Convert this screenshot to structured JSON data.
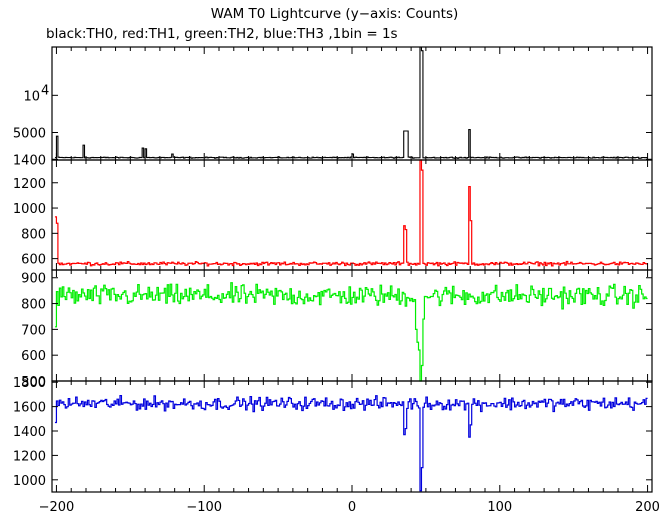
{
  "chart_data": {
    "type": "line",
    "title": "WAM T0 Lightcurve (y−axis: Counts)",
    "subtitle": "black:TH0, red:TH1, green:TH2, blue:TH3 ,1bin = 1s",
    "xlim": [
      -203,
      203
    ],
    "x_ticks": [
      -200,
      -100,
      0,
      100,
      200
    ],
    "x_tick_labels": [
      "−200",
      "−100",
      "0",
      "100",
      "200"
    ],
    "grid": false,
    "panels": [
      {
        "name": "TH0",
        "color": "#000000",
        "ylim": [
          1300,
          16500
        ],
        "y_tick_labels": [
          {
            "value": 10000,
            "label": "10",
            "exp": "4"
          },
          {
            "value": 5000,
            "label": "5000"
          },
          {
            "value": 1400,
            "label": "1400"
          }
        ],
        "baseline": 1620,
        "noise": 60,
        "features": [
          {
            "x": -200,
            "y": 4500
          },
          {
            "x": -182,
            "y": 3300
          },
          {
            "x": -142,
            "y": 2900
          },
          {
            "x": -140,
            "y": 2800
          },
          {
            "x": -122,
            "y": 2100
          },
          {
            "x": 0,
            "y": 2100
          },
          {
            "x": 35,
            "y": 5200
          },
          {
            "x": 36,
            "y": 5200
          },
          {
            "x": 37,
            "y": 5200
          },
          {
            "x": 46,
            "y": 16500
          },
          {
            "x": 47,
            "y": 16000
          },
          {
            "x": 79,
            "y": 5400
          }
        ]
      },
      {
        "name": "TH1",
        "color": "#ff0000",
        "ylim": [
          510,
          1380
        ],
        "y_tick_labels": [
          {
            "value": 1200,
            "label": "1200"
          },
          {
            "value": 1000,
            "label": "1000"
          },
          {
            "value": 800,
            "label": "800"
          },
          {
            "value": 600,
            "label": "600"
          }
        ],
        "baseline": 560,
        "noise": 12,
        "features": [
          {
            "x": -201,
            "y": 930
          },
          {
            "x": -200,
            "y": 880
          },
          {
            "x": 35,
            "y": 860
          },
          {
            "x": 36,
            "y": 830
          },
          {
            "x": 46,
            "y": 1380
          },
          {
            "x": 47,
            "y": 1300
          },
          {
            "x": 79,
            "y": 1170
          },
          {
            "x": 80,
            "y": 900
          }
        ]
      },
      {
        "name": "TH2",
        "color": "#00ee00",
        "ylim": [
          500,
          930
        ],
        "y_tick_labels": [
          {
            "value": 900,
            "label": "900"
          },
          {
            "value": 800,
            "label": "800"
          },
          {
            "value": 700,
            "label": "700"
          },
          {
            "value": 600,
            "label": "600"
          },
          {
            "value": 500,
            "label": "500"
          }
        ],
        "baseline": 830,
        "noise": 35,
        "features": [
          {
            "x": -201,
            "y": 710
          },
          {
            "x": 43,
            "y": 700
          },
          {
            "x": 44,
            "y": 650
          },
          {
            "x": 45,
            "y": 620
          },
          {
            "x": 46,
            "y": 500
          },
          {
            "x": 47,
            "y": 560
          },
          {
            "x": 48,
            "y": 740
          }
        ]
      },
      {
        "name": "TH3",
        "color": "#0000dd",
        "ylim": [
          900,
          1810
        ],
        "y_tick_labels": [
          {
            "value": 1800,
            "label": "1800"
          },
          {
            "value": 1600,
            "label": "1600"
          },
          {
            "value": 1400,
            "label": "1400"
          },
          {
            "value": 1200,
            "label": "1200"
          },
          {
            "value": 1000,
            "label": "1000"
          }
        ],
        "baseline": 1625,
        "noise": 45,
        "features": [
          {
            "x": -201,
            "y": 1470
          },
          {
            "x": 35,
            "y": 1370
          },
          {
            "x": 36,
            "y": 1420
          },
          {
            "x": 46,
            "y": 910
          },
          {
            "x": 47,
            "y": 1100
          },
          {
            "x": 79,
            "y": 1350
          },
          {
            "x": 80,
            "y": 1450
          }
        ]
      }
    ]
  }
}
